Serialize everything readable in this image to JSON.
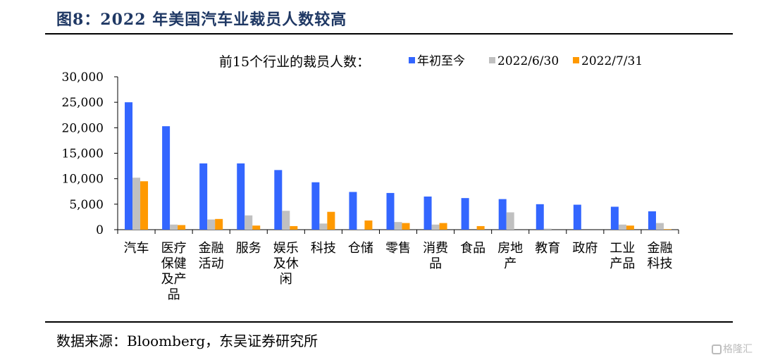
{
  "figure_title": "图8：2022 年美国汽车业裁员人数较高",
  "source": "数据来源：Bloomberg，东吴证券研究所",
  "watermark": "格隆汇",
  "chart_data": {
    "type": "bar",
    "title": "前15个行业的裁员人数：",
    "xlabel": "",
    "ylabel": "",
    "ylim": [
      0,
      30000
    ],
    "yticks": [
      0,
      5000,
      10000,
      15000,
      20000,
      25000,
      30000
    ],
    "ytick_labels": [
      "0",
      "5,000",
      "10,000",
      "15,000",
      "20,000",
      "25,000",
      "30,000"
    ],
    "categories": [
      [
        "汽车"
      ],
      [
        "医疗",
        "保健",
        "及产",
        "品"
      ],
      [
        "金融",
        "活动"
      ],
      [
        "服务"
      ],
      [
        "娱乐",
        "及休",
        "闲"
      ],
      [
        "科技"
      ],
      [
        "仓储"
      ],
      [
        "零售"
      ],
      [
        "消费",
        "品"
      ],
      [
        "食品"
      ],
      [
        "房地",
        "产"
      ],
      [
        "教育"
      ],
      [
        "政府"
      ],
      [
        "工业",
        "产品"
      ],
      [
        "金融",
        "科技"
      ]
    ],
    "series": [
      {
        "name": "年初至今",
        "color": "#3366ff",
        "values": [
          25000,
          20300,
          13000,
          13000,
          11700,
          9300,
          7400,
          7200,
          6500,
          6200,
          6000,
          5000,
          4900,
          4500,
          3600
        ]
      },
      {
        "name": "2022/6/30",
        "color": "#c0c0c0",
        "values": [
          10200,
          1000,
          2000,
          2800,
          3700,
          1200,
          100,
          1500,
          1000,
          0,
          3400,
          200,
          0,
          1000,
          1300
        ]
      },
      {
        "name": "2022/7/31",
        "color": "#ff9900",
        "values": [
          9500,
          900,
          2100,
          800,
          700,
          3500,
          1800,
          1300,
          1300,
          700,
          0,
          0,
          0,
          800,
          100
        ]
      }
    ],
    "legend_position": "top",
    "grid": false
  }
}
